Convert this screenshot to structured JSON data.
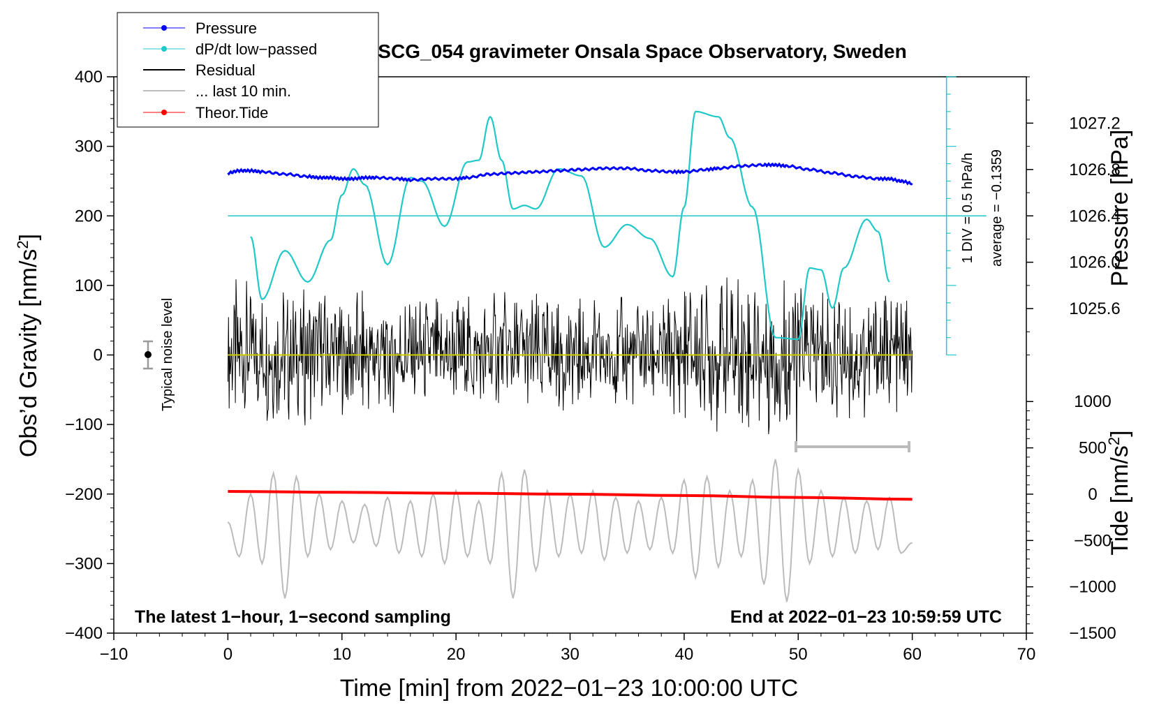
{
  "chart_data": {
    "type": "line",
    "title": "SCG_054 gravimeter Onsala Space Observatory, Sweden",
    "xlabel": "Time [min] from 2022−01−23 10:00:00 UTC",
    "ylabel_left": "Obs’d Gravity [nm/s",
    "ylabel_left_sup": "2",
    "ylabel_left_end": "]",
    "ylabel_right_top": "Pressure [hPa]",
    "ylabel_right_bottom": "Tide [nm/s",
    "ylabel_right_bottom_sup": "2",
    "ylabel_right_bottom_end": "]",
    "xlim": [
      -10,
      70
    ],
    "ylim": [
      -400,
      400
    ],
    "pressure_lim": [
      1025.2,
      1027.6
    ],
    "tide_lim": [
      -1500,
      1000
    ],
    "x_ticks": [
      "−10",
      "0",
      "10",
      "20",
      "30",
      "40",
      "50",
      "60",
      "70"
    ],
    "y_ticks": [
      "400",
      "300",
      "200",
      "100",
      "0",
      "−100",
      "−200",
      "−300",
      "−400"
    ],
    "pressure_ticks": [
      "1027.2",
      "1026.8",
      "1026.4",
      "1026.0",
      "1025.6"
    ],
    "tide_ticks": [
      "1000",
      "500",
      "0",
      "−500",
      "−1000",
      "−1500"
    ],
    "legend": [
      {
        "label": "Pressure",
        "color": "#0000ff"
      },
      {
        "label": "dP/dt low−passed",
        "color": "#20c8c8"
      },
      {
        "label": "Residual",
        "color": "#000000"
      },
      {
        "label": "... last 10 min.",
        "color": "#bbbbbb"
      },
      {
        "label": "Theor.Tide",
        "color": "#ff0000"
      }
    ],
    "footer_left": "The latest 1−hour, 1−second sampling",
    "footer_right": "End at 2022−01−23 10:59:59 UTC",
    "noise_label": "Typical noise level",
    "div_label": "1 DIV = 0.5 hPa/h",
    "average_label": "average = −0.1359",
    "series": [
      {
        "name": "Pressure",
        "unit": "hPa",
        "color": "#0000ff",
        "x": [
          0,
          1,
          2,
          3,
          5,
          7,
          8,
          9,
          10,
          11,
          12,
          13,
          15,
          16,
          18,
          20,
          21,
          23,
          25,
          27,
          29,
          31,
          33,
          35,
          37,
          39,
          40,
          42,
          43,
          45,
          47,
          48,
          49,
          51,
          53,
          55,
          57,
          58,
          59,
          60
        ],
        "values": [
          1026.77,
          1026.79,
          1026.79,
          1026.78,
          1026.76,
          1026.74,
          1026.73,
          1026.73,
          1026.72,
          1026.72,
          1026.73,
          1026.73,
          1026.72,
          1026.71,
          1026.72,
          1026.72,
          1026.73,
          1026.76,
          1026.77,
          1026.78,
          1026.79,
          1026.8,
          1026.81,
          1026.81,
          1026.79,
          1026.78,
          1026.78,
          1026.8,
          1026.81,
          1026.83,
          1026.84,
          1026.84,
          1026.83,
          1026.8,
          1026.77,
          1026.74,
          1026.72,
          1026.72,
          1026.7,
          1026.68
        ]
      },
      {
        "name": "dP/dt low−passed",
        "unit": "hPa/h",
        "color": "#20c8c8",
        "baseline_gravity": 200,
        "x": [
          2,
          3,
          5,
          7,
          9,
          10,
          11,
          12,
          14,
          16,
          17,
          19,
          21,
          22,
          23,
          24,
          25,
          26,
          27,
          29,
          31,
          33,
          35,
          37,
          39,
          40,
          41,
          43,
          44,
          46,
          48,
          50,
          51,
          52,
          53,
          54,
          56,
          57,
          58
        ],
        "values": [
          -0.12,
          -0.48,
          -0.2,
          -0.38,
          -0.14,
          0.12,
          0.27,
          0.18,
          -0.28,
          0.22,
          0.2,
          -0.06,
          0.31,
          0.32,
          0.57,
          0.32,
          0.04,
          0.06,
          0.04,
          0.27,
          0.23,
          -0.18,
          -0.05,
          -0.13,
          -0.35,
          0.05,
          0.6,
          0.57,
          0.45,
          0.05,
          -0.7,
          -0.71,
          -0.3,
          -0.31,
          -0.53,
          -0.3,
          -0.02,
          -0.09,
          -0.38
        ]
      },
      {
        "name": "Residual",
        "unit": "nm/s^2",
        "color": "#000000",
        "x": [
          0,
          2,
          4,
          6,
          8,
          10,
          12,
          14,
          16,
          18,
          20,
          22,
          24,
          26,
          28,
          30,
          32,
          34,
          36,
          38,
          40,
          42,
          44,
          46,
          48,
          49,
          50,
          52,
          54,
          56,
          58,
          60
        ],
        "values": [
          110,
          -100,
          95,
          -105,
          100,
          -95,
          90,
          -95,
          90,
          -90,
          85,
          -90,
          95,
          -95,
          85,
          -90,
          80,
          -85,
          85,
          -85,
          90,
          -110,
          115,
          -120,
          125,
          -150,
          105,
          -105,
          95,
          -100,
          90,
          -85
        ]
      },
      {
        "name": "... last 10 min.",
        "unit": "nm/s^2",
        "color": "#bbbbbb",
        "x": [
          0,
          1,
          2,
          3,
          4,
          5,
          6,
          7,
          8,
          9,
          10,
          11,
          12,
          13,
          14,
          15,
          16,
          17,
          18,
          19,
          20,
          21,
          22,
          23,
          24,
          25,
          26,
          27,
          28,
          29,
          30,
          31,
          32,
          33,
          34,
          35,
          36,
          37,
          38,
          39,
          40,
          41,
          42,
          43,
          44,
          45,
          46,
          47,
          48,
          49,
          50,
          51,
          52,
          53,
          54,
          55,
          56,
          57,
          58,
          59,
          60
        ],
        "values": [
          -240,
          -290,
          -200,
          -300,
          -170,
          -350,
          -175,
          -290,
          -200,
          -280,
          -210,
          -270,
          -215,
          -275,
          -205,
          -285,
          -210,
          -290,
          -200,
          -300,
          -195,
          -290,
          -210,
          -300,
          -170,
          -350,
          -165,
          -310,
          -195,
          -290,
          -200,
          -285,
          -195,
          -295,
          -205,
          -285,
          -210,
          -280,
          -205,
          -285,
          -180,
          -320,
          -175,
          -305,
          -195,
          -290,
          -180,
          -330,
          -150,
          -355,
          -165,
          -300,
          -195,
          -290,
          -205,
          -285,
          -210,
          -280,
          -205,
          -285,
          -270
        ]
      },
      {
        "name": "Theor.Tide",
        "unit": "nm/s^2",
        "color": "#ff0000",
        "x": [
          0,
          10,
          20,
          30,
          40,
          50,
          60
        ],
        "values": [
          30,
          20,
          10,
          0,
          -15,
          -35,
          -55
        ]
      }
    ]
  }
}
